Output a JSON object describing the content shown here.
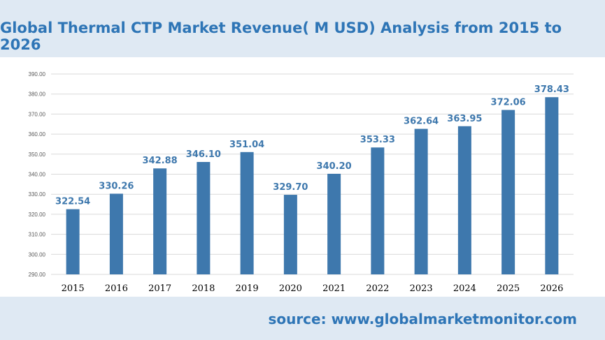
{
  "colors": {
    "bar": "#3e78ad",
    "label": "#3e78ad",
    "grid": "#d9d9d9",
    "title": "#2e75b6"
  },
  "source": "source: www.globalmarketmonitor.com",
  "chart_data": {
    "type": "bar",
    "title": "Global Thermal CTP Market Revenue( M USD) Analysis from 2015 to 2026",
    "xlabel": "",
    "ylabel": "",
    "categories": [
      "2015",
      "2016",
      "2017",
      "2018",
      "2019",
      "2020",
      "2021",
      "2022",
      "2023",
      "2024",
      "2025",
      "2026"
    ],
    "values": [
      322.54,
      330.26,
      342.88,
      346.1,
      351.04,
      329.7,
      340.2,
      353.33,
      362.64,
      363.95,
      372.06,
      378.43
    ],
    "value_labels": [
      "322.54",
      "330.26",
      "342.88",
      "346.10",
      "351.04",
      "329.70",
      "340.20",
      "353.33",
      "362.64",
      "363.95",
      "372.06",
      "378.43"
    ],
    "ylim": [
      290,
      390
    ],
    "yticks": [
      "290.00",
      "300.00",
      "310.00",
      "320.00",
      "330.00",
      "340.00",
      "350.00",
      "360.00",
      "370.00",
      "380.00",
      "390.00"
    ],
    "grid": true,
    "legend": "none"
  }
}
